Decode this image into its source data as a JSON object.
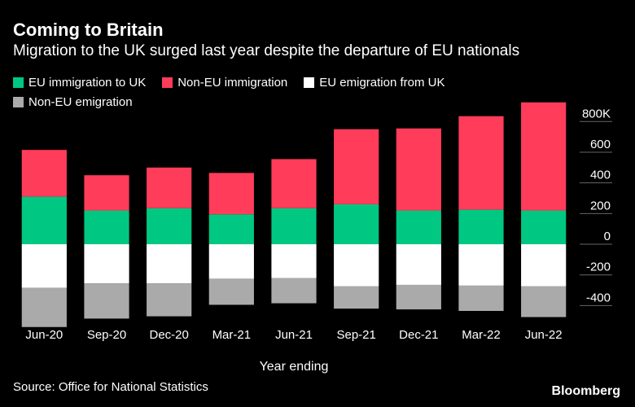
{
  "chart_data": {
    "type": "bar",
    "stacked": true,
    "title": "Coming to Britain",
    "subtitle": "Migration to the UK surged last year despite the departure of EU nationals",
    "xlabel": "Year ending",
    "ylabel": "",
    "ylim": [
      -520,
      860
    ],
    "yticks": [
      800,
      600,
      400,
      200,
      0,
      -200,
      -400
    ],
    "ytick_labels": [
      "800K",
      "600",
      "400",
      "200",
      "0",
      "-200",
      "-400"
    ],
    "categories": [
      "Jun-20",
      "Sep-20",
      "Dec-20",
      "Mar-21",
      "Jun-21",
      "Sep-21",
      "Dec-21",
      "Mar-22",
      "Jun-22"
    ],
    "series": [
      {
        "name": "EU immigration to UK",
        "color": "#00c882",
        "values": [
          310,
          220,
          235,
          195,
          235,
          260,
          220,
          225,
          220
        ]
      },
      {
        "name": "Non-EU immigration",
        "color": "#ff3c5a",
        "values": [
          305,
          230,
          265,
          270,
          320,
          490,
          535,
          610,
          705
        ]
      },
      {
        "name": "EU emigration from UK",
        "color": "#ffffff",
        "values": [
          -285,
          -255,
          -255,
          -225,
          -220,
          -275,
          -265,
          -270,
          -275
        ]
      },
      {
        "name": "Non-EU emigration",
        "color": "#aaaaaa",
        "values": [
          -255,
          -230,
          -215,
          -170,
          -165,
          -145,
          -160,
          -165,
          -200
        ]
      }
    ],
    "legend_position": "top-left",
    "grid": false
  },
  "source": "Source: Office for National Statistics",
  "brand": "Bloomberg"
}
